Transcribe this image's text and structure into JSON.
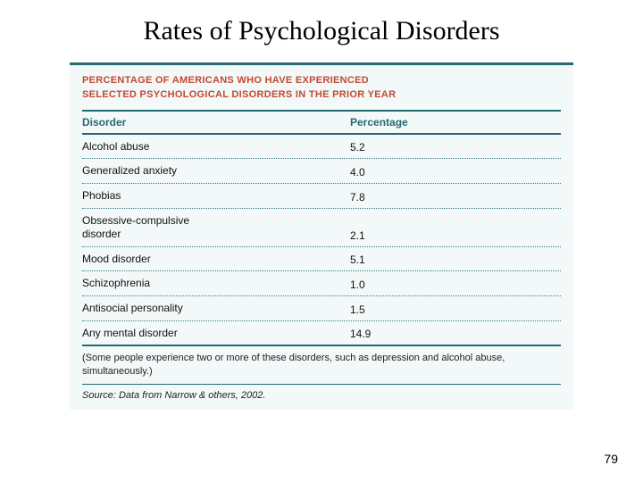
{
  "slide": {
    "title": "Rates of Psychological Disorders",
    "page_number": "79"
  },
  "card": {
    "header_line1": "PERCENTAGE OF AMERICANS WHO HAVE EXPERIENCED",
    "header_line2": "SELECTED PSYCHOLOGICAL DISORDERS IN THE PRIOR YEAR",
    "columns": {
      "disorder": "Disorder",
      "percentage": "Percentage"
    },
    "rows": [
      {
        "disorder": "Alcohol abuse",
        "percentage": "5.2"
      },
      {
        "disorder": "Generalized anxiety",
        "percentage": "4.0"
      },
      {
        "disorder": "Phobias",
        "percentage": "7.8"
      },
      {
        "disorder": "Obsessive-compulsive\n disorder",
        "percentage": "2.1"
      },
      {
        "disorder": "Mood disorder",
        "percentage": "5.1"
      },
      {
        "disorder": "Schizophrenia",
        "percentage": "1.0"
      },
      {
        "disorder": "Antisocial personality",
        "percentage": "1.5"
      },
      {
        "disorder": "Any mental disorder",
        "percentage": "14.9"
      }
    ],
    "note": "(Some people experience two or more of these disorders, such as depression and alcohol abuse, simultaneously.)",
    "source": "Source: Data from Narrow & others, 2002."
  },
  "colors": {
    "card_bg": "#f3f8f9",
    "rule_teal": "#246a71",
    "header_red": "#c24a2e",
    "dotted": "#3c8188"
  }
}
